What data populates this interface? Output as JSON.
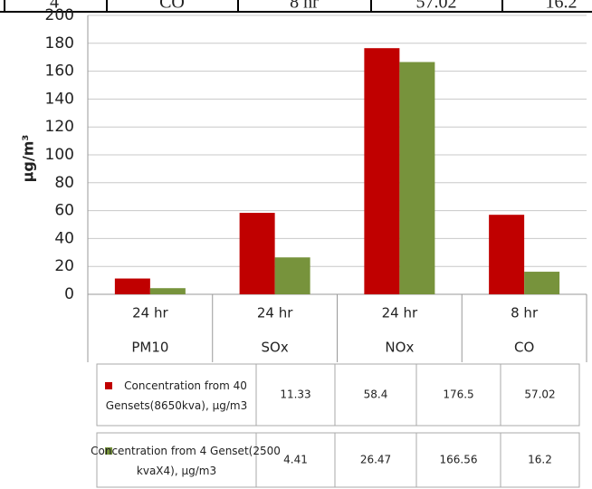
{
  "top_row": [
    "4",
    "CO",
    "8 hr",
    "57.02",
    "16.2"
  ],
  "chart_data": {
    "type": "bar",
    "y_label": "µg/m³",
    "categories": [
      "PM10",
      "SOx",
      "NOx",
      "CO"
    ],
    "periods": [
      "24 hr",
      "24 hr",
      "24 hr",
      "8 hr"
    ],
    "series": [
      {
        "name": "Concentration from 40 Gensets(8650kva), µg/m3",
        "color": "#c00000",
        "values": [
          11.33,
          58.4,
          176.5,
          57.02
        ]
      },
      {
        "name": "Concentration from 4 Genset(2500 kvaX4), µg/m3",
        "color": "#77933c",
        "values": [
          4.41,
          26.47,
          166.56,
          16.2
        ]
      }
    ],
    "ylim": [
      0,
      200
    ],
    "yticks": [
      0,
      20,
      40,
      60,
      80,
      100,
      120,
      140,
      160,
      180,
      200
    ],
    "grid": true
  }
}
